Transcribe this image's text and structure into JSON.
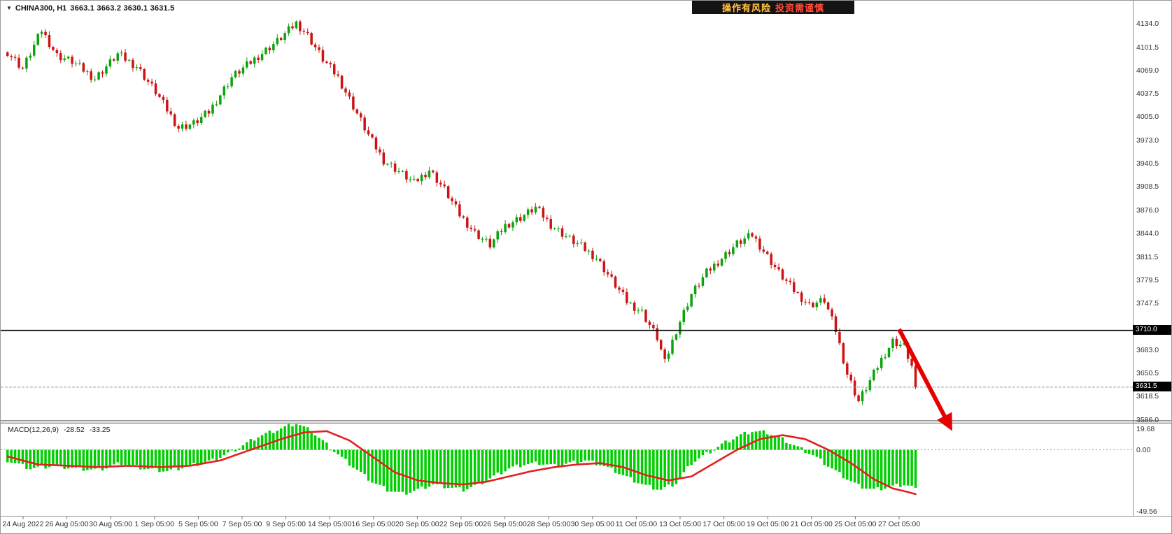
{
  "window": {
    "symbol_label": "CHINA300, H1",
    "ohlc": "3663.1 3663.2 3630.1 3631.5",
    "watermark": {
      "part1": "操作有风险",
      "part2": "投资需谨慎"
    }
  },
  "price_axis": {
    "labels": [
      "4134.0",
      "4101.5",
      "4069.0",
      "4037.5",
      "4005.0",
      "3973.0",
      "3940.5",
      "3908.5",
      "3876.0",
      "3844.0",
      "3811.5",
      "3779.5",
      "3747.5",
      "3683.0",
      "3650.5",
      "3618.5",
      "3586.0"
    ],
    "tags": [
      {
        "label": "3710.0",
        "price": 3710.0,
        "name": "price-tag-level"
      },
      {
        "label": "3631.5",
        "price": 3631.5,
        "name": "price-tag-current"
      }
    ]
  },
  "macd_panel": {
    "title": "MACD(12,26,9)",
    "values": [
      "-28.52",
      "-33.25"
    ],
    "axis_labels": [
      19.68,
      0.0,
      -49.56
    ],
    "axis_label_texts": [
      "19.68",
      "0.00",
      "-49.56"
    ]
  },
  "time_axis": {
    "labels": [
      "24 Aug 2022",
      "26 Aug 05:00",
      "30 Aug 05:00",
      "1 Sep 05:00",
      "5 Sep 05:00",
      "7 Sep 05:00",
      "9 Sep 05:00",
      "14 Sep 05:00",
      "16 Sep 05:00",
      "20 Sep 05:00",
      "22 Sep 05:00",
      "26 Sep 05:00",
      "28 Sep 05:00",
      "30 Sep 05:00",
      "11 Oct 05:00",
      "13 Oct 05:00",
      "17 Oct 05:00",
      "19 Oct 05:00",
      "21 Oct 05:00",
      "25 Oct 05:00",
      "27 Oct 05:00"
    ]
  },
  "chart_data": {
    "type": "candlestick",
    "title": "CHINA300 H1",
    "symbol": "CHINA300",
    "timeframe": "H1",
    "last_bar": {
      "open": 3663.1,
      "high": 3663.2,
      "low": 3630.1,
      "close": 3631.5
    },
    "ylim": [
      3586.0,
      4158.0
    ],
    "candles": 240,
    "price_path": [
      [
        0,
        4095
      ],
      [
        4,
        4072
      ],
      [
        9,
        4125
      ],
      [
        13,
        4090
      ],
      [
        17,
        4082
      ],
      [
        23,
        4058
      ],
      [
        29,
        4092
      ],
      [
        34,
        4075
      ],
      [
        39,
        4040
      ],
      [
        45,
        3990
      ],
      [
        49,
        3996
      ],
      [
        53,
        4012
      ],
      [
        59,
        4060
      ],
      [
        65,
        4085
      ],
      [
        71,
        4110
      ],
      [
        76,
        4135
      ],
      [
        79,
        4118
      ],
      [
        83,
        4085
      ],
      [
        87,
        4060
      ],
      [
        91,
        4020
      ],
      [
        95,
        3980
      ],
      [
        99,
        3945
      ],
      [
        103,
        3930
      ],
      [
        107,
        3914
      ],
      [
        111,
        3932
      ],
      [
        115,
        3905
      ],
      [
        119,
        3870
      ],
      [
        123,
        3845
      ],
      [
        127,
        3828
      ],
      [
        131,
        3855
      ],
      [
        135,
        3866
      ],
      [
        139,
        3880
      ],
      [
        143,
        3856
      ],
      [
        147,
        3840
      ],
      [
        151,
        3826
      ],
      [
        155,
        3810
      ],
      [
        159,
        3780
      ],
      [
        163,
        3750
      ],
      [
        167,
        3735
      ],
      [
        171,
        3700
      ],
      [
        173,
        3665
      ],
      [
        176,
        3710
      ],
      [
        180,
        3760
      ],
      [
        184,
        3790
      ],
      [
        188,
        3810
      ],
      [
        192,
        3830
      ],
      [
        196,
        3842
      ],
      [
        199,
        3820
      ],
      [
        203,
        3790
      ],
      [
        207,
        3765
      ],
      [
        211,
        3745
      ],
      [
        215,
        3752
      ],
      [
        218,
        3710
      ],
      [
        221,
        3650
      ],
      [
        224,
        3612
      ],
      [
        227,
        3640
      ],
      [
        230,
        3670
      ],
      [
        233,
        3695
      ],
      [
        236,
        3688
      ],
      [
        238,
        3660
      ],
      [
        239,
        3631.5
      ]
    ],
    "level_line_price": 3710.0,
    "current_price": 3631.5,
    "colors": {
      "up": "#0ca30c",
      "down": "#cc1414",
      "level_line": "#000000",
      "current_line": "#999999",
      "arrow": "#e60000"
    },
    "macd": {
      "params": "12,26,9",
      "last_macd": -28.52,
      "last_signal": -33.25,
      "range": [
        -49.56,
        19.68
      ],
      "hist_color": "#00ce00",
      "signal_color": "#e32020",
      "hist_path": [
        [
          0,
          -8
        ],
        [
          6,
          -14
        ],
        [
          12,
          -12
        ],
        [
          18,
          -14
        ],
        [
          24,
          -15
        ],
        [
          30,
          -10
        ],
        [
          36,
          -14
        ],
        [
          42,
          -16
        ],
        [
          48,
          -12
        ],
        [
          54,
          -8
        ],
        [
          60,
          0
        ],
        [
          66,
          10
        ],
        [
          72,
          16
        ],
        [
          76,
          20
        ],
        [
          80,
          14
        ],
        [
          84,
          4
        ],
        [
          88,
          -6
        ],
        [
          92,
          -15
        ],
        [
          96,
          -24
        ],
        [
          100,
          -30
        ],
        [
          104,
          -33
        ],
        [
          108,
          -30
        ],
        [
          112,
          -26
        ],
        [
          116,
          -28
        ],
        [
          120,
          -30
        ],
        [
          124,
          -26
        ],
        [
          128,
          -20
        ],
        [
          132,
          -14
        ],
        [
          136,
          -11
        ],
        [
          140,
          -10
        ],
        [
          144,
          -12
        ],
        [
          148,
          -10
        ],
        [
          152,
          -8
        ],
        [
          156,
          -11
        ],
        [
          160,
          -16
        ],
        [
          164,
          -22
        ],
        [
          168,
          -27
        ],
        [
          172,
          -30
        ],
        [
          176,
          -25
        ],
        [
          180,
          -10
        ],
        [
          184,
          -3
        ],
        [
          188,
          4
        ],
        [
          192,
          10
        ],
        [
          196,
          14
        ],
        [
          200,
          13
        ],
        [
          204,
          8
        ],
        [
          208,
          2
        ],
        [
          212,
          -4
        ],
        [
          216,
          -12
        ],
        [
          220,
          -20
        ],
        [
          224,
          -27
        ],
        [
          228,
          -30
        ],
        [
          232,
          -28
        ],
        [
          236,
          -26
        ],
        [
          239,
          -28.52
        ]
      ],
      "signal_path": [
        [
          0,
          -5
        ],
        [
          8,
          -11
        ],
        [
          16,
          -12
        ],
        [
          24,
          -13
        ],
        [
          32,
          -12
        ],
        [
          40,
          -13
        ],
        [
          48,
          -12
        ],
        [
          56,
          -8
        ],
        [
          64,
          0
        ],
        [
          72,
          8
        ],
        [
          78,
          13
        ],
        [
          84,
          14
        ],
        [
          90,
          7
        ],
        [
          96,
          -5
        ],
        [
          102,
          -17
        ],
        [
          108,
          -23
        ],
        [
          114,
          -25
        ],
        [
          120,
          -26
        ],
        [
          126,
          -24
        ],
        [
          132,
          -20
        ],
        [
          138,
          -16
        ],
        [
          144,
          -13
        ],
        [
          150,
          -11
        ],
        [
          156,
          -10
        ],
        [
          162,
          -13
        ],
        [
          168,
          -19
        ],
        [
          174,
          -23
        ],
        [
          180,
          -20
        ],
        [
          186,
          -10
        ],
        [
          192,
          0
        ],
        [
          198,
          8
        ],
        [
          204,
          11
        ],
        [
          210,
          8
        ],
        [
          216,
          0
        ],
        [
          222,
          -10
        ],
        [
          228,
          -22
        ],
        [
          233,
          -29
        ],
        [
          236,
          -31
        ],
        [
          239,
          -33.25
        ]
      ]
    },
    "annotation_arrow": {
      "from": [
        1284,
        470
      ],
      "to": [
        1356,
        608
      ]
    }
  }
}
